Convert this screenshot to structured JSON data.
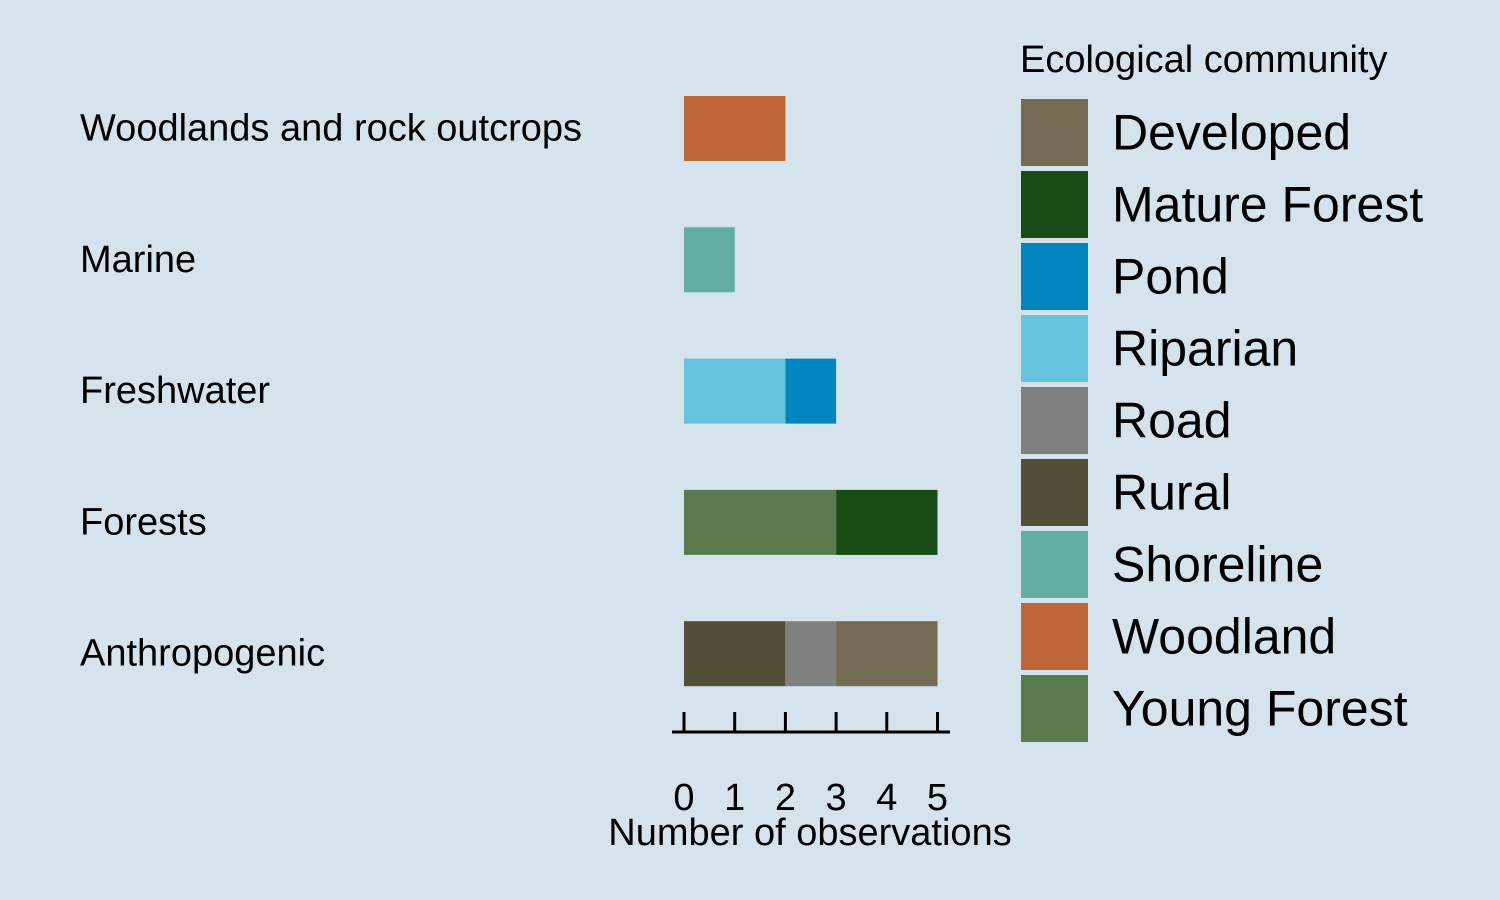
{
  "chart_data": {
    "type": "bar",
    "orientation": "horizontal",
    "stacked": true,
    "categories": [
      "Woodlands and rock outcrops",
      "Marine",
      "Freshwater",
      "Forests",
      "Anthropogenic"
    ],
    "series": [
      {
        "name": "Rural",
        "color": "#544d38",
        "values": [
          0,
          0,
          0,
          0,
          2
        ]
      },
      {
        "name": "Road",
        "color": "#808080",
        "values": [
          0,
          0,
          0,
          0,
          1
        ]
      },
      {
        "name": "Developed",
        "color": "#736c52",
        "values": [
          0,
          0,
          0,
          0,
          2
        ]
      },
      {
        "name": "Young Forest",
        "color": "#5a7a4f",
        "values": [
          0,
          0,
          0,
          3,
          0
        ]
      },
      {
        "name": "Mature Forest",
        "color": "#194c14",
        "values": [
          0,
          0,
          0,
          2,
          0
        ]
      },
      {
        "name": "Riparian",
        "color": "#65c3dd",
        "values": [
          0,
          0,
          2,
          0,
          0
        ]
      },
      {
        "name": "Pond",
        "color": "#0086be",
        "values": [
          0,
          0,
          1,
          0,
          0
        ]
      },
      {
        "name": "Shoreline",
        "color": "#63aea2",
        "values": [
          0,
          1,
          0,
          0,
          0
        ]
      },
      {
        "name": "Woodland",
        "color": "#be663a",
        "values": [
          2,
          0,
          0,
          0,
          0
        ]
      }
    ],
    "xlabel": "Number of observations",
    "xlim": [
      0,
      5
    ],
    "xticks": [
      "0",
      "1",
      "2",
      "3",
      "4",
      "5"
    ],
    "grid": false,
    "legend": {
      "title": "Ecological community",
      "placement": "right",
      "entries": [
        "Developed",
        "Mature Forest",
        "Pond",
        "Riparian",
        "Road",
        "Rural",
        "Shoreline",
        "Woodland",
        "Young Forest"
      ]
    }
  }
}
